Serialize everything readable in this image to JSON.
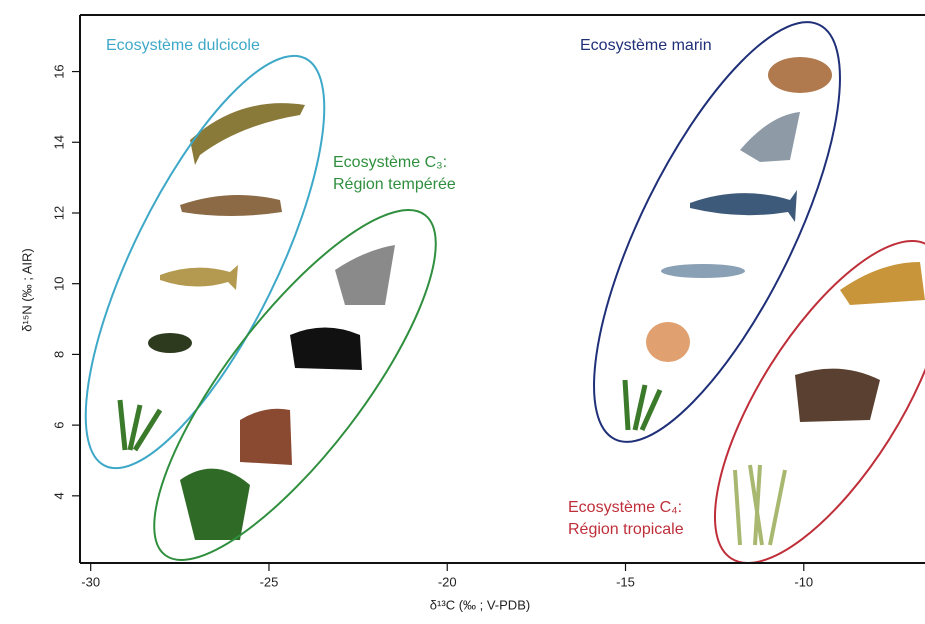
{
  "chart_data": {
    "type": "region",
    "xlabel": "δ¹³C (‰ ; V-PDB)",
    "ylabel": "δ¹⁵N (‰ ; AIR)",
    "xlim": [
      -30.3,
      -6.6
    ],
    "xticks": [
      -30,
      -25,
      -20,
      -15,
      -10
    ],
    "ylim": [
      2.1,
      17.6
    ],
    "yticks": [
      4,
      6,
      8,
      10,
      12,
      14,
      16
    ],
    "annotations": [
      {
        "lines": [
          "Ecosystème dulcicole"
        ],
        "color": "#3ea8c8"
      },
      {
        "lines": [
          "Ecosystème C₃:",
          "Région tempérée"
        ],
        "color": "#2f8f3e"
      },
      {
        "lines": [
          "Ecosystème marin"
        ],
        "color": "#1f2f78"
      },
      {
        "lines": [
          "Ecosystème C₄:",
          "Région tropicale"
        ],
        "color": "#bf2f3a"
      }
    ]
  }
}
